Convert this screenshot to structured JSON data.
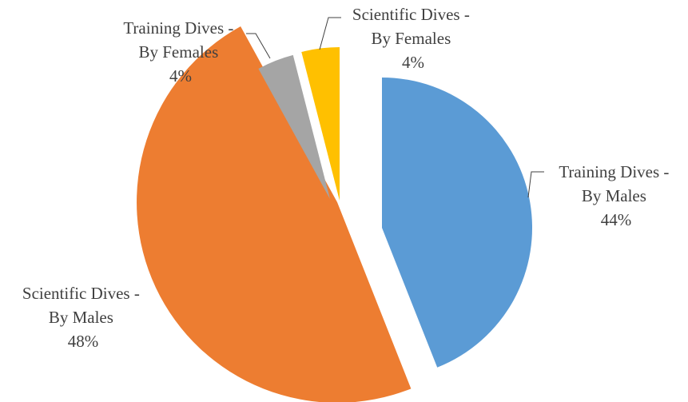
{
  "chart_data": {
    "type": "pie",
    "exploded": true,
    "slices": [
      {
        "label_lines": [
          "Training Dives -",
          "By Males"
        ],
        "value": 44,
        "percent_label": "44%",
        "color": "#5B9BD5"
      },
      {
        "label_lines": [
          "Scientific Dives -",
          "By Males"
        ],
        "value": 48,
        "percent_label": "48%",
        "color": "#ED7D31"
      },
      {
        "label_lines": [
          "Training Dives -",
          "By Females"
        ],
        "value": 4,
        "percent_label": "4%",
        "color": "#A5A5A5"
      },
      {
        "label_lines": [
          "Scientific Dives -",
          "By Females"
        ],
        "value": 4,
        "percent_label": "4%",
        "color": "#FFC000"
      }
    ]
  }
}
